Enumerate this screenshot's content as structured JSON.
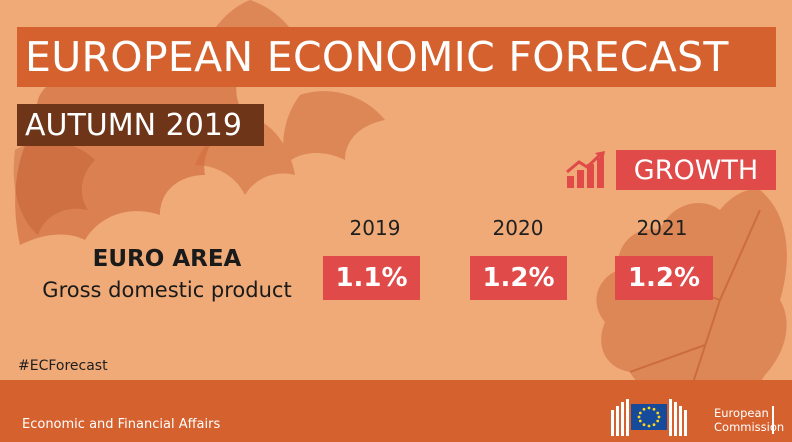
{
  "header": {
    "title": "EUROPEAN ECONOMIC FORECAST",
    "subtitle": "AUTUMN 2019"
  },
  "section": {
    "label": "GROWTH",
    "icon": "growth-chart-icon"
  },
  "table": {
    "years": [
      "2019",
      "2020",
      "2021"
    ],
    "region": "EURO AREA",
    "indicator": "Gross domestic product",
    "values": [
      "1.1%",
      "1.2%",
      "1.2%"
    ]
  },
  "hashtag": "#ECForecast",
  "footer": {
    "department": "Economic and Financial Affairs",
    "org_line1": "European",
    "org_line2": "Commission"
  },
  "colors": {
    "background": "#efaa77",
    "band": "#d5612e",
    "dark_band": "#6f3518",
    "accent": "#e04a49",
    "leaf": "#cf6a3c",
    "eu_blue": "#164a9b",
    "eu_star": "#ffd617"
  }
}
